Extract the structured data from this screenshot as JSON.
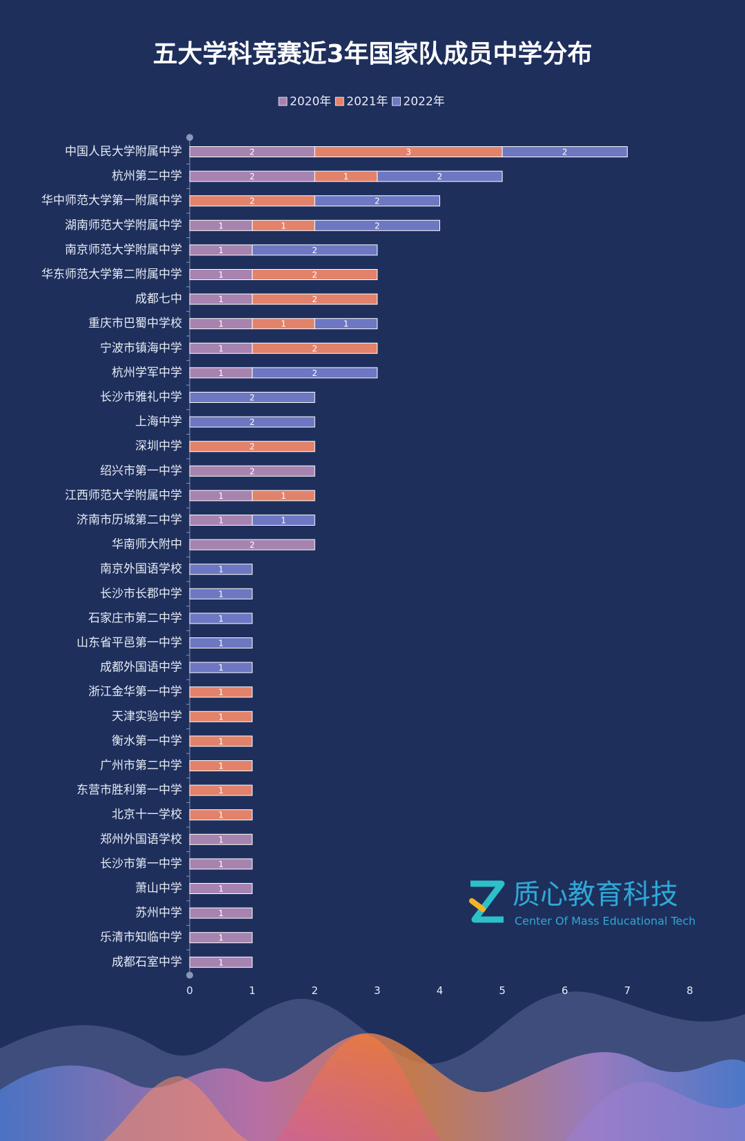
{
  "chart_data": {
    "type": "stacked-barh",
    "title": "五大学科竞赛近3年国家队成员中学分布",
    "categories": [
      "中国人民大学附属中学",
      "杭州第二中学",
      "华中师范大学第一附属中学",
      "湖南师范大学附属中学",
      "南京师范大学附属中学",
      "华东师范大学第二附属中学",
      "成都七中",
      "重庆市巴蜀中学校",
      "宁波市镇海中学",
      "杭州学军中学",
      "长沙市雅礼中学",
      "上海中学",
      "深圳中学",
      "绍兴市第一中学",
      "江西师范大学附属中学",
      "济南市历城第二中学",
      "华南师大附中",
      "南京外国语学校",
      "长沙市长郡中学",
      "石家庄市第二中学",
      "山东省平邑第一中学",
      "成都外国语中学",
      "浙江金华第一中学",
      "天津实验中学",
      "衡水第一中学",
      "广州市第二中学",
      "东营市胜利第一中学",
      "北京十一学校",
      "郑州外国语学校",
      "长沙市第一中学",
      "萧山中学",
      "苏州中学",
      "乐清市知临中学",
      "成都石室中学"
    ],
    "series": [
      {
        "name": "2020年",
        "color": "#a783b0",
        "values": [
          2,
          2,
          0,
          1,
          1,
          1,
          1,
          1,
          1,
          1,
          0,
          0,
          0,
          2,
          1,
          1,
          2,
          0,
          0,
          0,
          0,
          0,
          0,
          0,
          0,
          0,
          0,
          0,
          1,
          1,
          1,
          1,
          1,
          1
        ]
      },
      {
        "name": "2021年",
        "color": "#e2826b",
        "values": [
          3,
          1,
          2,
          1,
          0,
          2,
          2,
          1,
          2,
          0,
          0,
          0,
          2,
          0,
          1,
          0,
          0,
          0,
          0,
          0,
          0,
          0,
          1,
          1,
          1,
          1,
          1,
          1,
          0,
          0,
          0,
          0,
          0,
          0
        ]
      },
      {
        "name": "2022年",
        "color": "#6d77c2",
        "values": [
          2,
          2,
          2,
          2,
          2,
          0,
          0,
          1,
          0,
          2,
          2,
          2,
          0,
          0,
          0,
          1,
          0,
          1,
          1,
          1,
          1,
          1,
          0,
          0,
          0,
          0,
          0,
          0,
          0,
          0,
          0,
          0,
          0,
          0
        ]
      }
    ],
    "xlim": [
      0,
      8
    ],
    "xticks": [
      0,
      1,
      2,
      3,
      4,
      5,
      6,
      7,
      8
    ],
    "legend": "top"
  },
  "watermark": {
    "name": "质心教育科技",
    "subtitle": "Center Of Mass Educational Tech"
  }
}
